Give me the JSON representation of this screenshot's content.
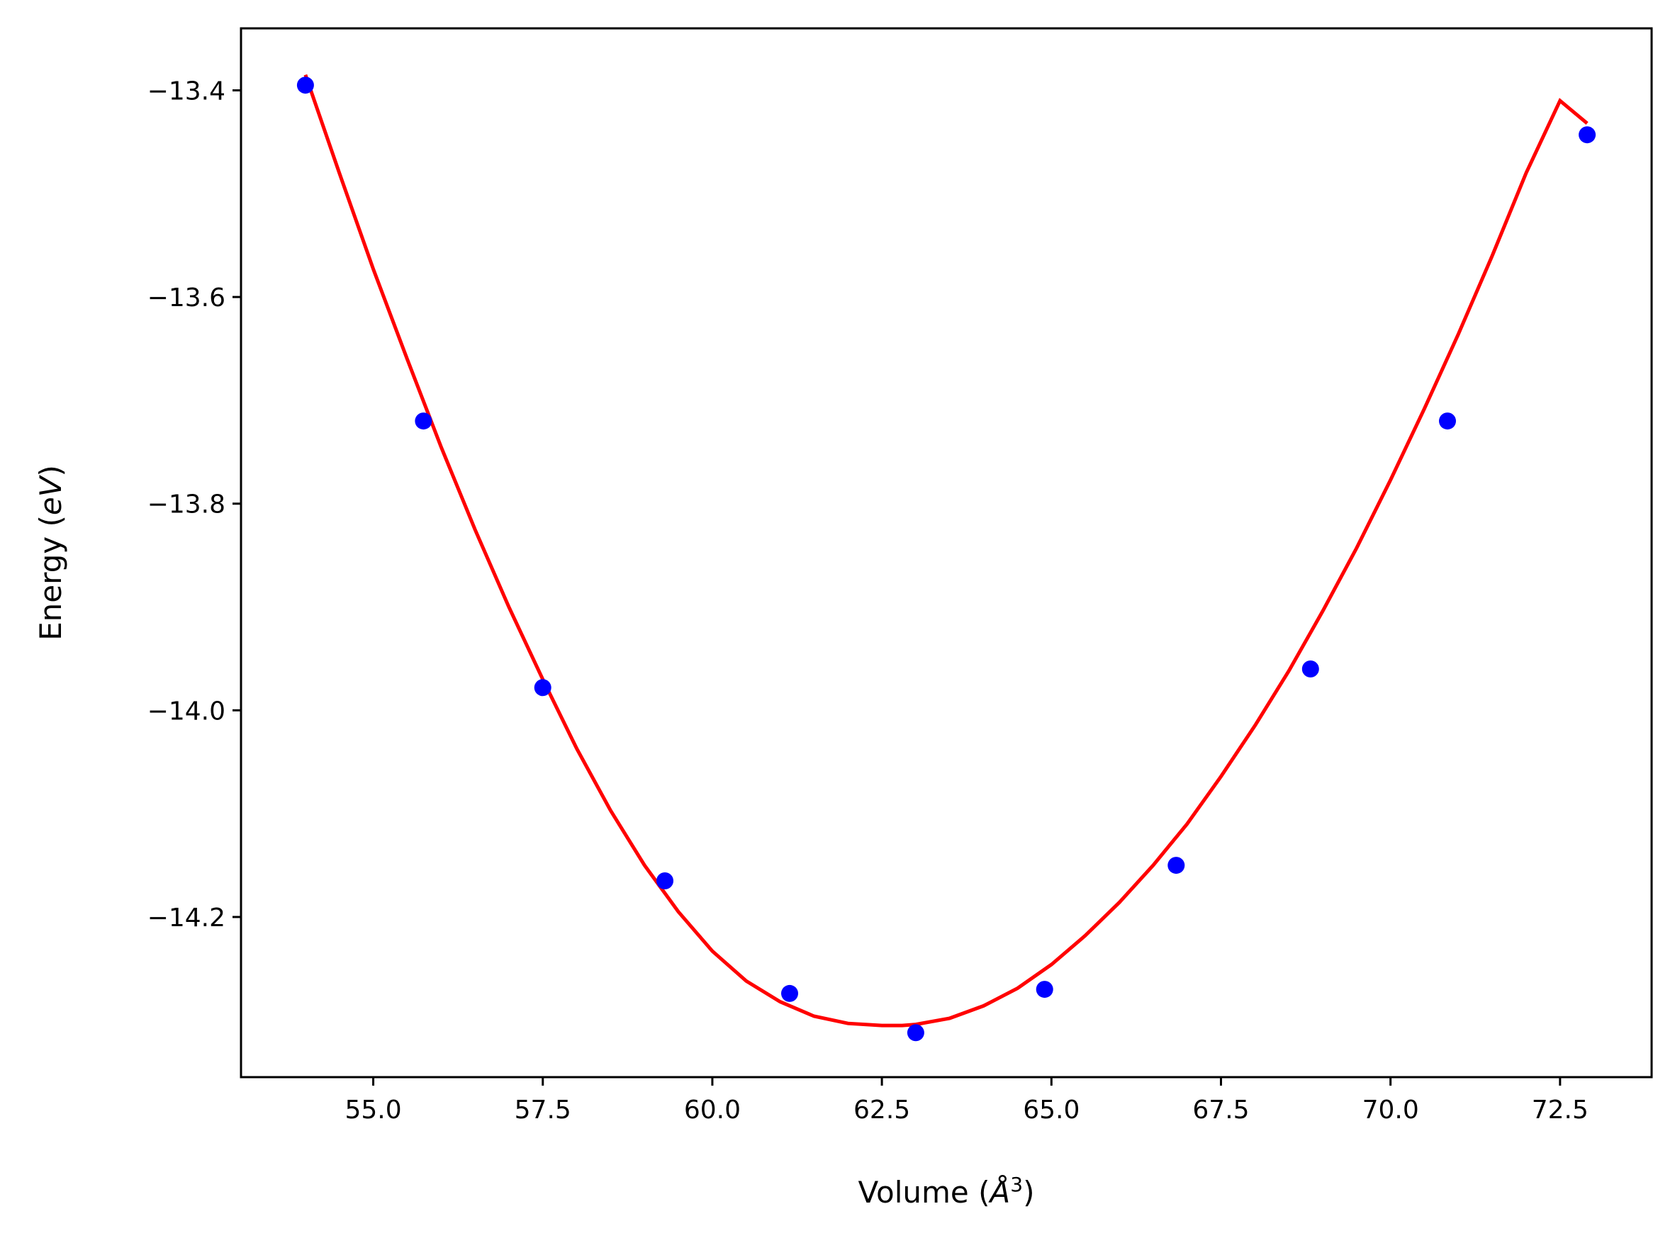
{
  "chart_data": {
    "type": "scatter",
    "xlabel": "Volume (Å³)",
    "xlabel_main": "Volume (",
    "xlabel_unit": "Å",
    "xlabel_sup": "3",
    "xlabel_close": ")",
    "ylabel": "Energy (eV)",
    "ylabel_main": "Energy (",
    "ylabel_unit": "eV",
    "ylabel_close": ")",
    "xlim": [
      53.05,
      73.85
    ],
    "ylim": [
      -14.355,
      -13.34
    ],
    "xticks": [
      55.0,
      57.5,
      60.0,
      62.5,
      65.0,
      67.5,
      70.0,
      72.5
    ],
    "xtick_labels": [
      "55.0",
      "57.5",
      "60.0",
      "62.5",
      "65.0",
      "67.5",
      "70.0",
      "72.5"
    ],
    "yticks": [
      -13.4,
      -13.6,
      -13.8,
      -14.0,
      -14.2
    ],
    "ytick_labels": [
      "−13.4",
      "−13.6",
      "−13.8",
      "−14.0",
      "−14.2"
    ],
    "grid": false,
    "series": [
      {
        "kind": "scatter",
        "color": "#0000ff",
        "x": [
          54.0,
          55.74,
          57.5,
          59.3,
          61.14,
          63.0,
          64.9,
          66.84,
          68.82,
          70.84,
          72.9
        ],
        "y": [
          -13.395,
          -13.72,
          -13.978,
          -14.165,
          -14.274,
          -14.312,
          -14.27,
          -14.15,
          -13.96,
          -13.72,
          -13.443
        ]
      },
      {
        "kind": "line",
        "color": "#ff0000",
        "x": [
          54.0,
          54.5,
          55.0,
          55.5,
          56.0,
          56.5,
          57.0,
          57.5,
          58.0,
          58.5,
          59.0,
          59.5,
          60.0,
          60.5,
          61.0,
          61.5,
          62.0,
          62.5,
          62.8,
          63.0,
          63.5,
          64.0,
          64.5,
          65.0,
          65.5,
          66.0,
          66.5,
          67.0,
          67.5,
          68.0,
          68.5,
          69.0,
          69.5,
          70.0,
          70.5,
          71.0,
          71.5,
          72.0,
          72.5,
          72.9
        ],
        "y": [
          -13.385,
          -13.48,
          -13.573,
          -13.66,
          -13.745,
          -13.825,
          -13.9,
          -13.97,
          -14.037,
          -14.097,
          -14.15,
          -14.195,
          -14.233,
          -14.262,
          -14.282,
          -14.296,
          -14.303,
          -14.305,
          -14.305,
          -14.304,
          -14.298,
          -14.286,
          -14.269,
          -14.246,
          -14.218,
          -14.186,
          -14.15,
          -14.11,
          -14.064,
          -14.015,
          -13.962,
          -13.904,
          -13.843,
          -13.777,
          -13.708,
          -13.636,
          -13.56,
          -13.48,
          -13.41,
          -13.432
        ]
      }
    ]
  }
}
